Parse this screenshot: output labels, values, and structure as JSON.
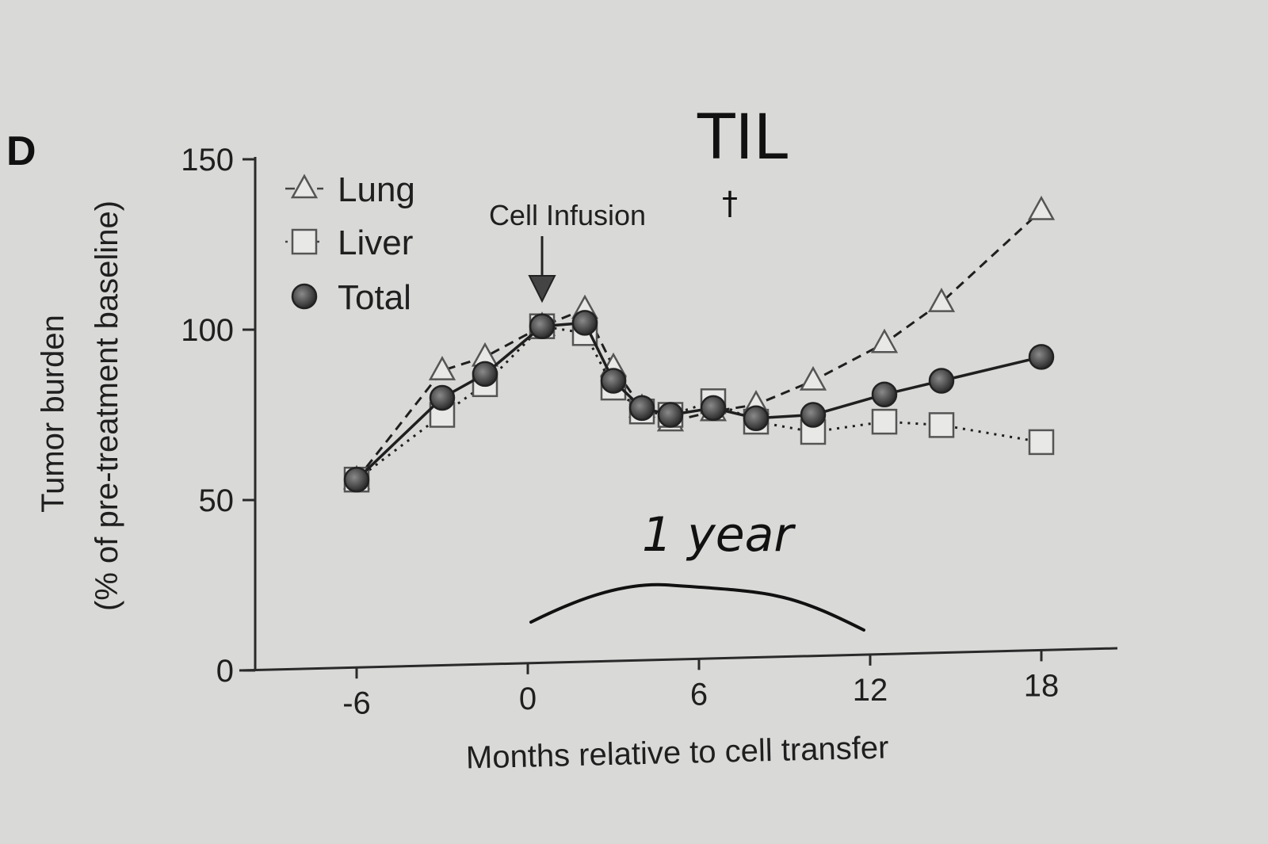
{
  "panel_label": "D",
  "handwritten_title": "TIL",
  "handwritten_mark": "†",
  "handwritten_note": "1 year",
  "chart_data": {
    "type": "line",
    "title": "",
    "xlabel": "Months relative to cell transfer",
    "ylabel_line1": "Tumor burden",
    "ylabel_line2": "(% of pre-treatment baseline)",
    "xlim": [
      -9.5,
      20
    ],
    "ylim": [
      0,
      150
    ],
    "xticks": [
      -6,
      0,
      6,
      12,
      18
    ],
    "yticks": [
      0,
      50,
      100,
      150
    ],
    "annotation": {
      "text": "Cell Infusion",
      "x": 0.5,
      "y": 100
    },
    "series": [
      {
        "name": "Lung",
        "marker": "triangle",
        "line": "dashed",
        "x": [
          -6,
          -3,
          -1.5,
          0.5,
          2,
          3,
          4,
          5,
          6.5,
          8,
          10,
          12.5,
          14.5,
          18
        ],
        "y": [
          56,
          88,
          92,
          101,
          106,
          89,
          77,
          73,
          76,
          78,
          85,
          96,
          108,
          135
        ]
      },
      {
        "name": "Liver",
        "marker": "square",
        "line": "dotted",
        "x": [
          -6,
          -3,
          -1.5,
          0.5,
          2,
          3,
          4,
          5,
          6.5,
          8,
          10,
          12.5,
          14.5,
          18
        ],
        "y": [
          56,
          75,
          84,
          101,
          99,
          83,
          76,
          75,
          79,
          73,
          70,
          73,
          72,
          67
        ]
      },
      {
        "name": "Total",
        "marker": "circle",
        "line": "solid",
        "x": [
          -6,
          -3,
          -1.5,
          0.5,
          2,
          3,
          4,
          5,
          6.5,
          8,
          10,
          12.5,
          14.5,
          18
        ],
        "y": [
          56,
          80,
          87,
          101,
          102,
          85,
          77,
          75,
          77,
          74,
          75,
          81,
          85,
          92
        ]
      }
    ]
  }
}
